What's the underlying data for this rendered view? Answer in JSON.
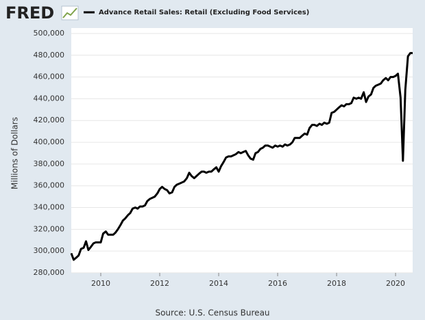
{
  "logo": "FRED",
  "chart_data": {
    "type": "line",
    "legend_label": "Advance Retail Sales: Retail (Excluding Food Services)",
    "y_label": "Millions of Dollars",
    "source": "Source: U.S. Census Bureau",
    "x": [
      2009.0,
      2009.08,
      2009.17,
      2009.25,
      2009.33,
      2009.42,
      2009.5,
      2009.58,
      2009.67,
      2009.75,
      2009.83,
      2009.92,
      2010.0,
      2010.08,
      2010.17,
      2010.25,
      2010.33,
      2010.42,
      2010.5,
      2010.58,
      2010.67,
      2010.75,
      2010.83,
      2010.92,
      2011.0,
      2011.08,
      2011.17,
      2011.25,
      2011.33,
      2011.42,
      2011.5,
      2011.58,
      2011.67,
      2011.75,
      2011.83,
      2011.92,
      2012.0,
      2012.08,
      2012.17,
      2012.25,
      2012.33,
      2012.42,
      2012.5,
      2012.58,
      2012.67,
      2012.75,
      2012.83,
      2012.92,
      2013.0,
      2013.08,
      2013.17,
      2013.25,
      2013.33,
      2013.42,
      2013.5,
      2013.58,
      2013.67,
      2013.75,
      2013.83,
      2013.92,
      2014.0,
      2014.08,
      2014.17,
      2014.25,
      2014.33,
      2014.42,
      2014.5,
      2014.58,
      2014.67,
      2014.75,
      2014.83,
      2014.92,
      2015.0,
      2015.08,
      2015.17,
      2015.25,
      2015.33,
      2015.42,
      2015.5,
      2015.58,
      2015.67,
      2015.75,
      2015.83,
      2015.92,
      2016.0,
      2016.08,
      2016.17,
      2016.25,
      2016.33,
      2016.42,
      2016.5,
      2016.58,
      2016.67,
      2016.75,
      2016.83,
      2016.92,
      2017.0,
      2017.08,
      2017.17,
      2017.25,
      2017.33,
      2017.42,
      2017.5,
      2017.58,
      2017.67,
      2017.75,
      2017.83,
      2017.92,
      2018.0,
      2018.08,
      2018.17,
      2018.25,
      2018.33,
      2018.42,
      2018.5,
      2018.58,
      2018.67,
      2018.75,
      2018.83,
      2018.92,
      2019.0,
      2019.08,
      2019.17,
      2019.25,
      2019.33,
      2019.42,
      2019.5,
      2019.58,
      2019.67,
      2019.75,
      2019.83,
      2019.92,
      2020.0,
      2020.08,
      2020.17,
      2020.25,
      2020.33,
      2020.42,
      2020.5,
      2020.58
    ],
    "series": [
      {
        "name": "Advance Retail Sales: Retail (Excluding Food Services)",
        "color": "#000000",
        "values": [
          298000,
          292000,
          294000,
          296000,
          302000,
          303000,
          309000,
          301000,
          304000,
          307000,
          308000,
          308000,
          308000,
          316000,
          318000,
          315000,
          315000,
          315000,
          317000,
          320000,
          324000,
          328000,
          330000,
          333000,
          335000,
          339000,
          340000,
          339000,
          341000,
          341000,
          342000,
          346000,
          348000,
          349000,
          350000,
          353000,
          357000,
          359000,
          357000,
          356000,
          353000,
          354000,
          359000,
          361000,
          362000,
          363000,
          364000,
          367000,
          372000,
          369000,
          367000,
          369000,
          371000,
          373000,
          373000,
          372000,
          373000,
          373000,
          375000,
          377000,
          373000,
          378000,
          382000,
          386000,
          387000,
          387000,
          388000,
          389000,
          391000,
          390000,
          391000,
          392000,
          388000,
          385000,
          384000,
          390000,
          391000,
          394000,
          395000,
          397000,
          397000,
          396000,
          395000,
          397000,
          396000,
          397000,
          396000,
          398000,
          397000,
          398000,
          400000,
          404000,
          404000,
          404000,
          406000,
          408000,
          407000,
          413000,
          416000,
          416000,
          415000,
          417000,
          416000,
          418000,
          417000,
          418000,
          427000,
          428000,
          430000,
          432000,
          434000,
          433000,
          435000,
          435000,
          436000,
          441000,
          440000,
          441000,
          440000,
          446000,
          437000,
          442000,
          444000,
          450000,
          452000,
          453000,
          454000,
          457000,
          459000,
          457000,
          460000,
          460000,
          461000,
          463000,
          441000,
          383000,
          448000,
          479000,
          482000,
          482000
        ]
      }
    ],
    "xlim": [
      2009,
      2020.58
    ],
    "xticks": [
      2010,
      2012,
      2014,
      2016,
      2018,
      2020
    ],
    "ylim": [
      280000,
      505000
    ],
    "yticks": [
      {
        "value": 280000,
        "label": "280,000"
      },
      {
        "value": 300000,
        "label": "300,000"
      },
      {
        "value": 320000,
        "label": "320,000"
      },
      {
        "value": 340000,
        "label": "340,000"
      },
      {
        "value": 360000,
        "label": "360,000"
      },
      {
        "value": 380000,
        "label": "380,000"
      },
      {
        "value": 400000,
        "label": "400,000"
      },
      {
        "value": 420000,
        "label": "420,000"
      },
      {
        "value": 440000,
        "label": "440,000"
      },
      {
        "value": 460000,
        "label": "460,000"
      },
      {
        "value": 480000,
        "label": "480,000"
      },
      {
        "value": 500000,
        "label": "500,000"
      }
    ],
    "grid": true
  }
}
